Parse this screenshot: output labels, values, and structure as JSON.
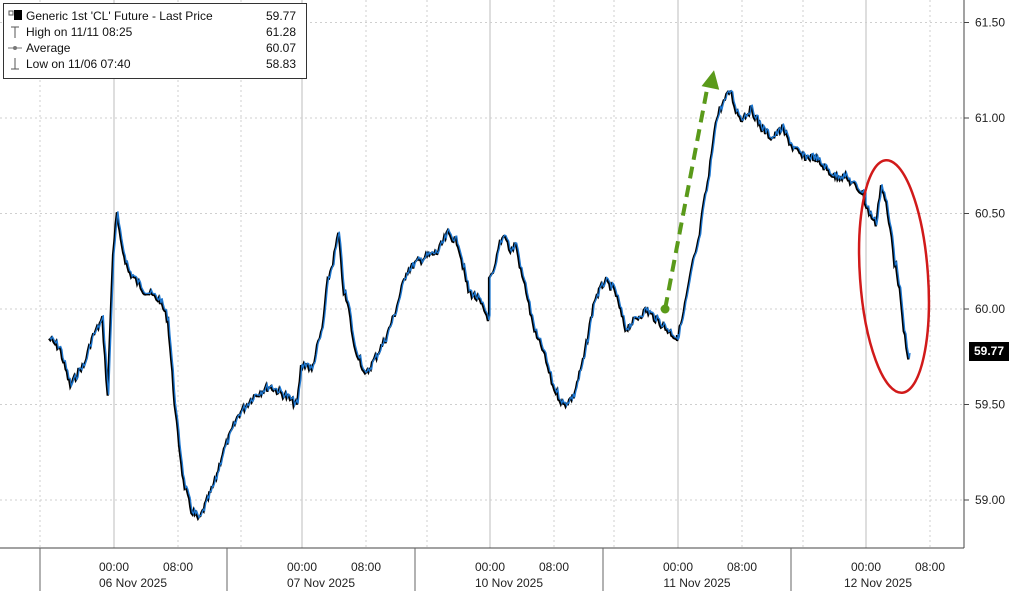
{
  "chart_data": {
    "type": "line",
    "title": "",
    "legend": {
      "entries": [
        {
          "name": "Generic 1st 'CL' Future - Last Price",
          "value": "59.77",
          "symbol": "filled-square-icon"
        },
        {
          "name": "High on 11/11 08:25",
          "value": "61.28",
          "symbol": "high-marker-icon"
        },
        {
          "name": "Average",
          "value": "60.07",
          "symbol": "average-line-icon"
        },
        {
          "name": "Low on 11/06 07:40",
          "value": "58.83",
          "symbol": "low-marker-icon"
        }
      ],
      "placement": "top-left"
    },
    "last_price_label": "59.77",
    "y_ticks": [
      "59.00",
      "59.50",
      "60.00",
      "60.50",
      "61.00",
      "61.50"
    ],
    "ylim": [
      58.72,
      61.62
    ],
    "time_ticks": [
      "00:00",
      "08:00",
      "00:00",
      "08:00",
      "00:00",
      "08:00",
      "00:00",
      "08:00",
      "00:00",
      "08:00"
    ],
    "date_labels": [
      "06 Nov 2025",
      "07 Nov 2025",
      "10 Nov 2025",
      "11 Nov 2025",
      "12 Nov 2025"
    ],
    "grid": true,
    "series": [
      {
        "name": "Generic 1st 'CL' Future - Last Price",
        "color": "#1f78d1",
        "shadow_color": "#000000",
        "x_hours": [
          0,
          4,
          8,
          10,
          12,
          13,
          14,
          16,
          18,
          20,
          22,
          24,
          24.5,
          25,
          26,
          28,
          30,
          31,
          32,
          33,
          34,
          35,
          36,
          37,
          38,
          40,
          42,
          44,
          46,
          47.5,
          48,
          50,
          52,
          54,
          56,
          58,
          60,
          62,
          64,
          66,
          68,
          70,
          71,
          72,
          74,
          76,
          78,
          80,
          82,
          84,
          86,
          88,
          90,
          92,
          94,
          96,
          96,
          98,
          100,
          102,
          104,
          106,
          108,
          110,
          112,
          114,
          116,
          118,
          120,
          121,
          122,
          124,
          126,
          128,
          130,
          132,
          134,
          136,
          138,
          140,
          142,
          144,
          144,
          146,
          148,
          150,
          152,
          154,
          156,
          158,
          160,
          162,
          164,
          166,
          168,
          170,
          172,
          174,
          176,
          178,
          180,
          182,
          184,
          186,
          188,
          190,
          192,
          192,
          194,
          196,
          198,
          200,
          201,
          202,
          203,
          204,
          205,
          206,
          207,
          208,
          208.5
        ],
        "values": [
          59.85,
          59.8,
          59.6,
          59.65,
          59.7,
          59.7,
          59.75,
          59.85,
          59.9,
          59.95,
          59.55,
          60.3,
          60.5,
          60.35,
          60.2,
          60.1,
          60.05,
          59.95,
          59.45,
          59.1,
          58.95,
          58.9,
          59.0,
          59.1,
          59.25,
          59.45,
          59.55,
          59.6,
          59.55,
          59.5,
          59.7,
          59.72,
          59.68,
          59.8,
          59.9,
          60.15,
          60.25,
          60.4,
          60.1,
          60.0,
          59.8,
          59.75,
          59.7,
          59.65,
          59.75,
          59.85,
          60.0,
          60.2,
          60.25,
          60.28,
          60.3,
          60.4,
          60.35,
          60.1,
          60.05,
          59.95,
          60.15,
          60.2,
          60.35,
          60.4,
          60.3,
          60.35,
          60.2,
          60.1,
          59.95,
          59.85,
          59.8,
          59.7,
          59.6,
          59.55,
          59.5,
          59.55,
          59.75,
          60.05,
          60.15,
          60.1,
          59.9,
          59.95,
          60.0,
          59.95,
          59.9,
          59.85,
          59.85,
          59.95,
          60.1,
          60.25,
          60.35,
          60.55,
          60.7,
          60.95,
          61.05,
          61.1,
          61.15,
          61.05,
          61.0,
          61.05,
          60.95,
          60.9,
          60.95,
          60.85,
          60.8,
          60.8,
          60.75,
          60.7,
          60.7,
          60.65,
          60.6,
          60.55,
          60.5,
          60.45,
          60.65,
          60.55,
          60.45,
          60.4,
          60.25,
          60.2,
          60.1,
          59.95,
          59.85,
          59.75,
          59.77
        ]
      }
    ],
    "annotations": [
      {
        "type": "arrow",
        "color": "#5a9a1a",
        "style": "dashed",
        "from": {
          "x_hours": 141.5,
          "value": 60.0
        },
        "to": {
          "x_hours": 157.5,
          "value": 61.25
        }
      },
      {
        "type": "ellipse",
        "color": "#d11a1a",
        "center": {
          "x_hours": 202.5,
          "value": 60.17
        },
        "rx_hours": 14.5,
        "ry_value": 0.61
      }
    ]
  }
}
